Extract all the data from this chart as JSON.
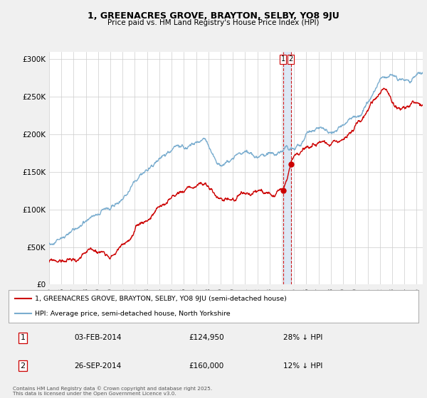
{
  "title": "1, GREENACRES GROVE, BRAYTON, SELBY, YO8 9JU",
  "subtitle": "Price paid vs. HM Land Registry's House Price Index (HPI)",
  "ylabel_ticks": [
    "£0",
    "£50K",
    "£100K",
    "£150K",
    "£200K",
    "£250K",
    "£300K"
  ],
  "ytick_vals": [
    0,
    50000,
    100000,
    150000,
    200000,
    250000,
    300000
  ],
  "ylim": [
    0,
    310000
  ],
  "xlim_start": 1995.0,
  "xlim_end": 2025.5,
  "legend_line1": "1, GREENACRES GROVE, BRAYTON, SELBY, YO8 9JU (semi-detached house)",
  "legend_line2": "HPI: Average price, semi-detached house, North Yorkshire",
  "legend_color1": "#cc0000",
  "legend_color2": "#7aadcf",
  "point1_label": "1",
  "point1_date": "03-FEB-2014",
  "point1_price": "£124,950",
  "point1_hpi": "28% ↓ HPI",
  "point1_x": 2014.09,
  "point1_y": 124950,
  "point2_label": "2",
  "point2_date": "26-SEP-2014",
  "point2_price": "£160,000",
  "point2_hpi": "12% ↓ HPI",
  "point2_x": 2014.73,
  "point2_y": 160000,
  "footnote": "Contains HM Land Registry data © Crown copyright and database right 2025.\nThis data is licensed under the Open Government Licence v3.0.",
  "bg_color": "#f0f0f0",
  "plot_bg_color": "#ffffff",
  "hpi_color": "#7aadcf",
  "price_color": "#cc0000",
  "shade_color": "#dce8f5"
}
